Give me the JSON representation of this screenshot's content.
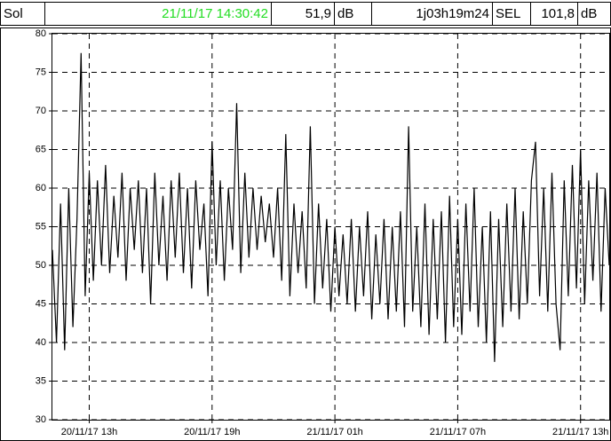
{
  "header": {
    "label": "Sol",
    "time": "21/11/17 14:30:42",
    "level": "51,9",
    "level_unit": "dB",
    "duration": "1j03h19m24",
    "sel_label": "SEL",
    "sel": "101,8",
    "sel_unit": "dB"
  },
  "chart_data": {
    "type": "line",
    "categories": [
      null,
      null,
      null,
      null,
      null,
      null,
      null,
      null,
      null,
      "20/11/17 13h",
      null,
      null,
      null,
      null,
      null,
      null,
      null,
      null,
      null,
      null,
      null,
      null,
      null,
      null,
      null,
      null,
      null,
      null,
      null,
      null,
      null,
      null,
      null,
      null,
      null,
      null,
      null,
      null,
      null,
      "20/11/17 19h",
      null,
      null,
      null,
      null,
      null,
      null,
      null,
      null,
      null,
      null,
      null,
      null,
      null,
      null,
      null,
      null,
      null,
      null,
      null,
      null,
      null,
      null,
      null,
      null,
      null,
      null,
      null,
      null,
      null,
      "21/11/17 01h",
      null,
      null,
      null,
      null,
      null,
      null,
      null,
      null,
      null,
      null,
      null,
      null,
      null,
      null,
      null,
      null,
      null,
      null,
      null,
      null,
      null,
      null,
      null,
      null,
      null,
      null,
      null,
      null,
      null,
      "21/11/17 07h",
      null,
      null,
      null,
      null,
      null,
      null,
      null,
      null,
      null,
      null,
      null,
      null,
      null,
      null,
      null,
      null,
      null,
      null,
      null,
      null,
      null,
      null,
      null,
      null,
      null,
      null,
      null,
      null,
      null,
      "21/11/17 13h",
      null,
      null,
      null,
      null,
      null,
      null,
      null
    ],
    "series": [
      {
        "color": "#000000",
        "values": [
          52,
          40,
          58,
          39,
          60,
          42,
          56,
          77.5,
          46,
          62,
          48,
          61,
          50,
          63,
          49,
          59,
          51,
          62,
          48,
          60,
          52,
          61,
          49,
          60,
          45,
          62,
          50,
          59,
          48,
          61,
          51,
          62,
          49,
          60,
          47,
          61,
          52,
          58,
          46,
          66,
          50,
          61,
          48,
          60,
          52,
          71,
          49,
          62,
          51,
          60,
          52,
          59,
          53,
          58,
          51,
          60,
          48,
          67,
          46,
          58,
          49,
          57,
          47,
          68,
          45,
          58,
          47,
          56,
          44,
          55,
          46,
          54,
          45,
          56,
          44,
          55,
          46,
          57,
          43,
          54,
          45,
          56,
          43,
          55,
          44,
          57,
          42,
          68,
          44,
          55,
          42,
          58,
          41,
          56,
          43,
          57,
          40,
          59,
          42,
          56,
          41,
          58,
          44,
          60,
          42,
          55,
          40,
          57,
          37.5,
          56,
          42,
          58,
          44,
          60,
          43,
          57,
          45,
          61,
          66,
          46,
          60,
          44,
          62,
          45,
          39,
          61,
          46,
          63,
          47,
          65,
          45,
          61,
          48,
          62,
          44,
          60,
          50
        ]
      }
    ],
    "ylim": [
      30,
      80
    ],
    "yticks": [
      30,
      35,
      40,
      45,
      50,
      55,
      60,
      65,
      70,
      75,
      80
    ],
    "grid": true
  }
}
